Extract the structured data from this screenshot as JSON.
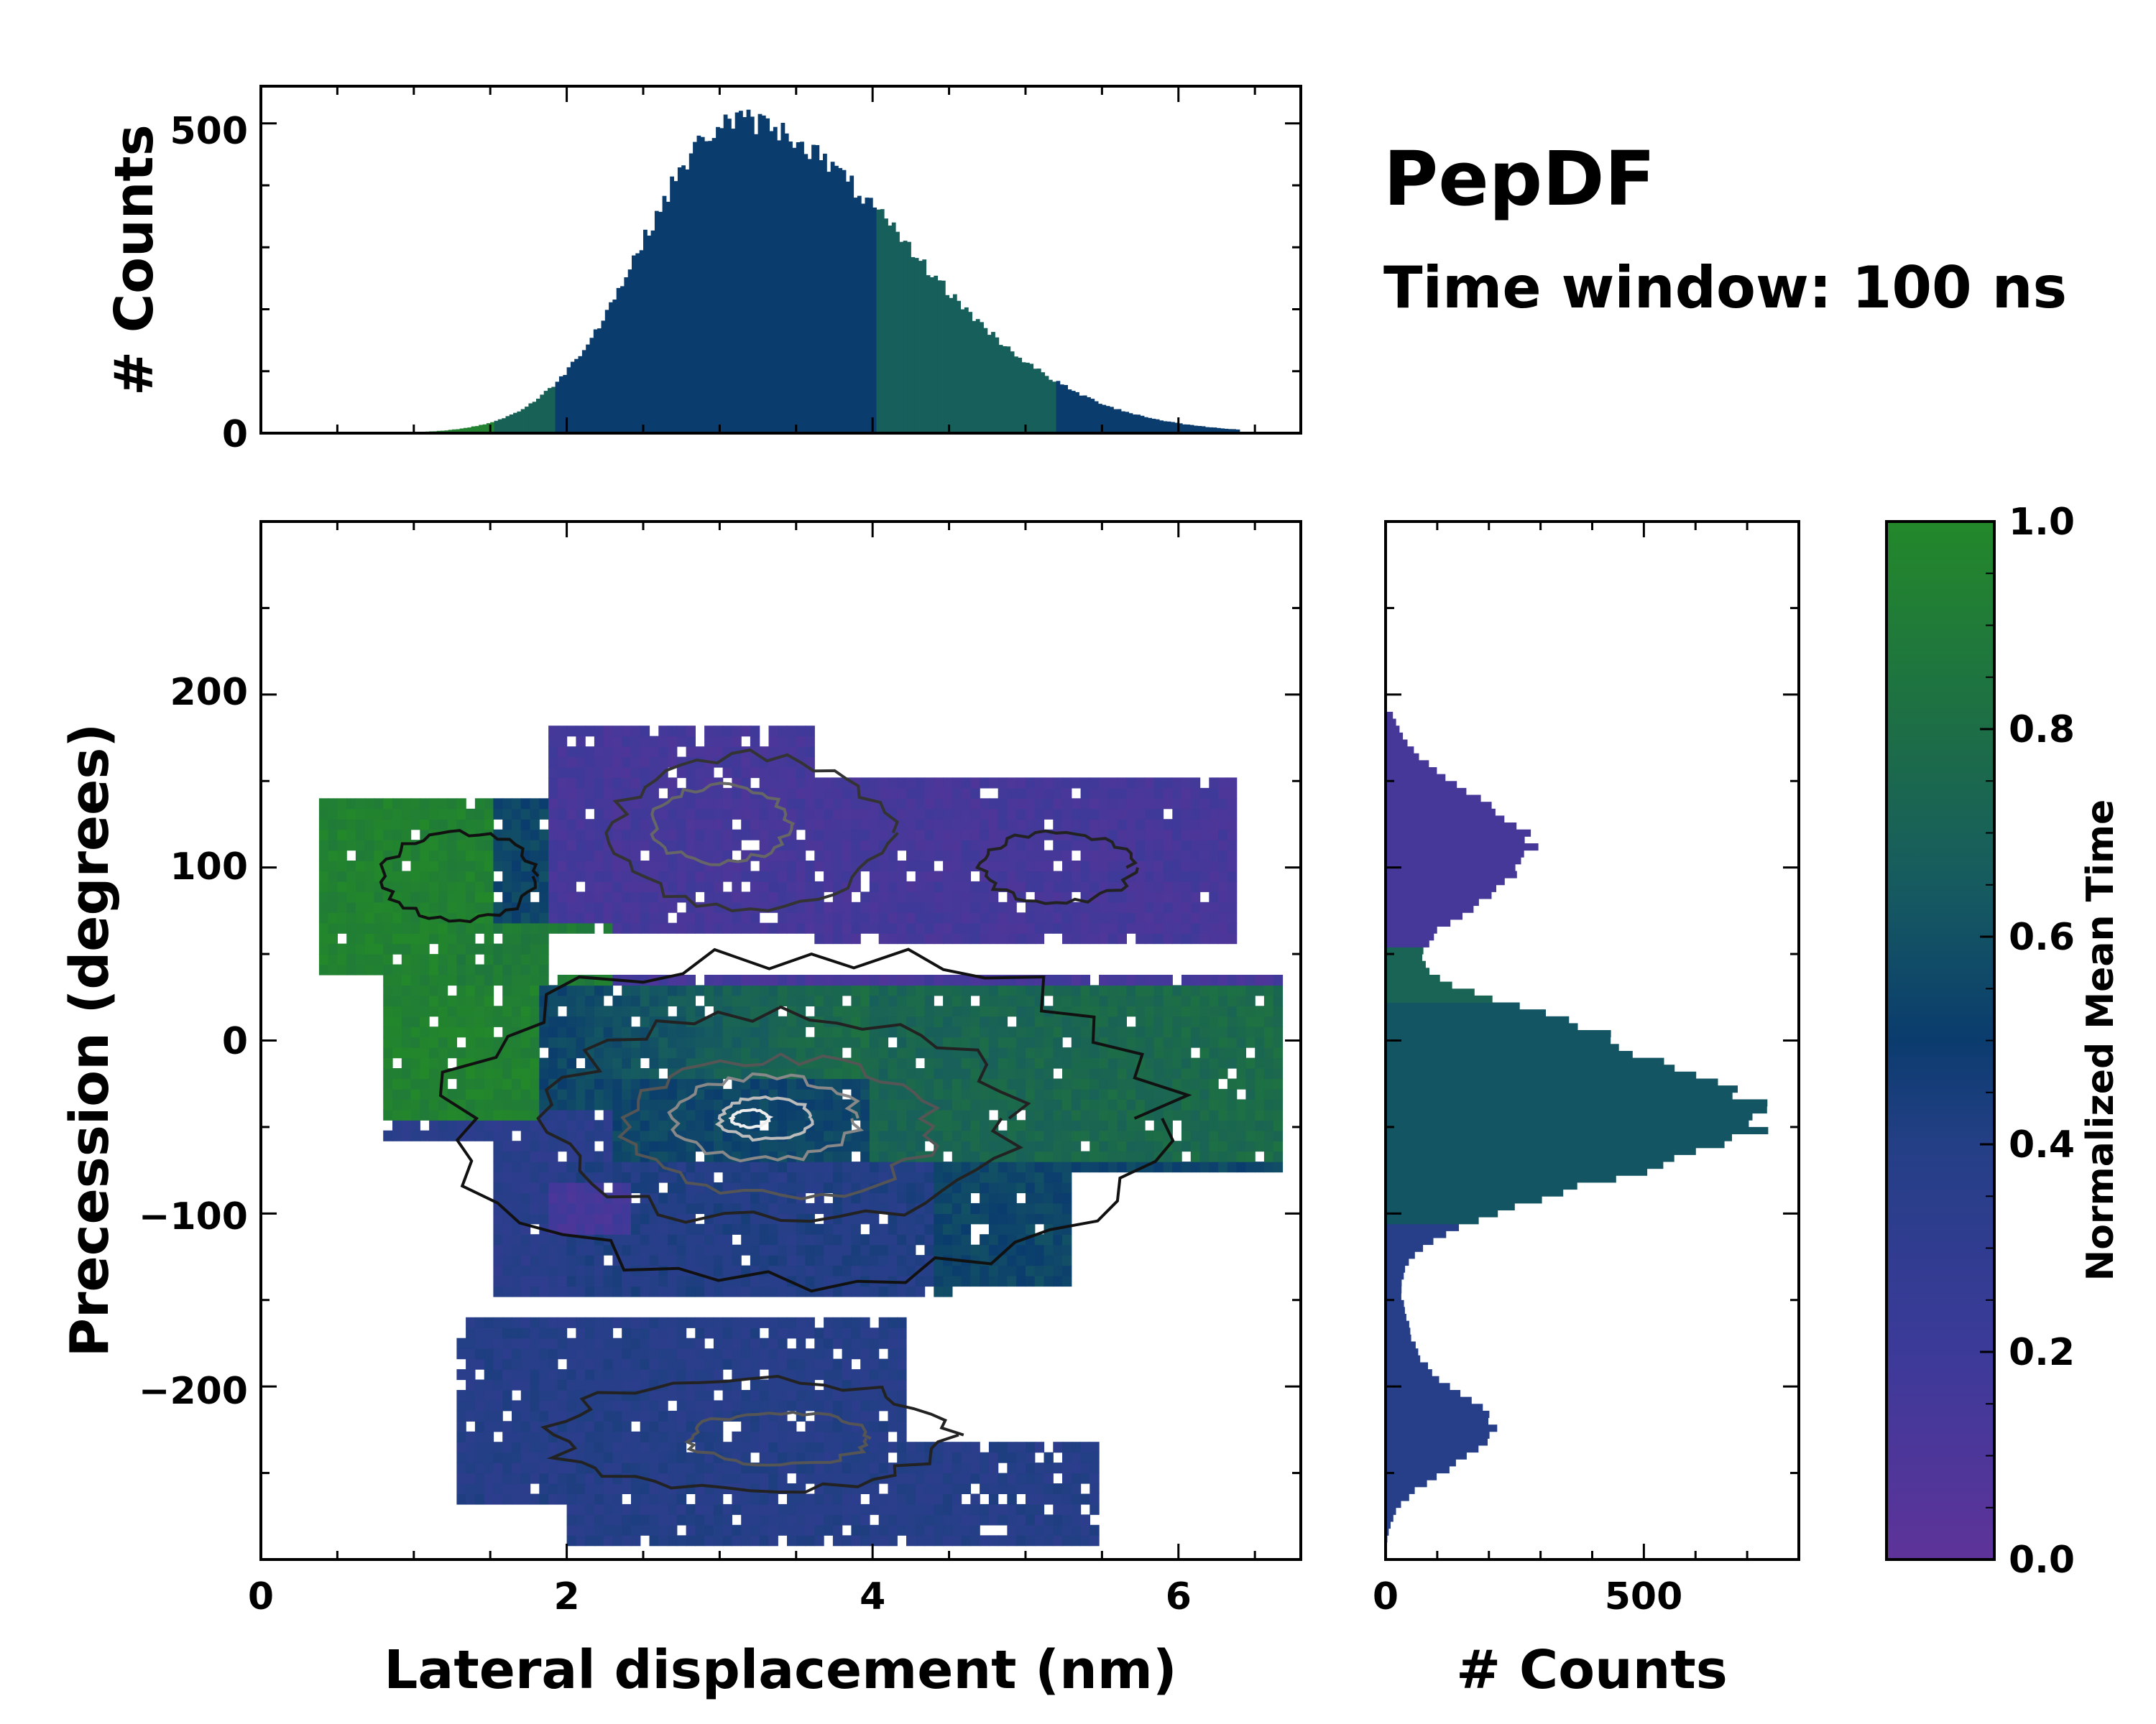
{
  "title": "PepDF",
  "subtitle": "Time window: 100 ns",
  "chart_data": [
    {
      "type": "heatmap",
      "role": "joint-distribution",
      "xlabel": "Lateral displacement (nm)",
      "ylabel": "Precession (degrees)",
      "xlim": [
        0,
        6.8
      ],
      "ylim": [
        -300,
        300
      ],
      "xticks": [
        0,
        2,
        4,
        6
      ],
      "xtick_labels": [
        "0",
        "2",
        "4",
        "6"
      ],
      "yticks": [
        -200,
        -100,
        0,
        100,
        200
      ],
      "ytick_labels": [
        "−200",
        "−100",
        "0",
        "100",
        "200"
      ],
      "color_meaning": "Normalized Mean Time",
      "regions": [
        {
          "name": "upper-band",
          "x_range": [
            0.4,
            6.4
          ],
          "y_range": [
            30,
            190
          ],
          "mean_time": 0.15,
          "left_part_mean_time": 0.95
        },
        {
          "name": "middle-band",
          "x_range": [
            0.7,
            6.7
          ],
          "y_range": [
            -140,
            35
          ],
          "mean_time": 0.55,
          "left_part_mean_time": 0.95,
          "right_part_mean_time": 0.75
        },
        {
          "name": "lower-band",
          "x_range": [
            1.3,
            5.5
          ],
          "y_range": [
            -290,
            -160
          ],
          "mean_time": 0.38
        }
      ],
      "density_peak": {
        "x": 3.3,
        "y": -45
      }
    },
    {
      "type": "bar",
      "role": "top-marginal",
      "ylabel": "# Counts",
      "ylim": [
        0,
        560
      ],
      "yticks": [
        0,
        500
      ],
      "ytick_labels": [
        "0",
        "500"
      ],
      "x_range": [
        0.4,
        6.4
      ],
      "peak_x": 3.1,
      "peak_count": 505
    },
    {
      "type": "bar",
      "role": "right-marginal",
      "xlabel": "# Counts",
      "xlim": [
        0,
        800
      ],
      "xticks": [
        0,
        500
      ],
      "xtick_labels": [
        "0",
        "500"
      ],
      "peaks": [
        {
          "y": 110,
          "count": 280
        },
        {
          "y": -40,
          "count": 720
        },
        {
          "y": -225,
          "count": 210
        }
      ]
    },
    {
      "type": "colorbar",
      "label": "Normalized Mean Time",
      "range": [
        0.0,
        1.0
      ],
      "ticks": [
        0.0,
        0.2,
        0.4,
        0.6,
        0.8,
        1.0
      ],
      "tick_labels": [
        "0.0",
        "0.2",
        "0.4",
        "0.6",
        "0.8",
        "1.0"
      ],
      "colors": [
        "#5e3399",
        "#2f3d8c",
        "#0b3c6e",
        "#195e5e",
        "#1e7a3c",
        "#23882a"
      ]
    }
  ]
}
